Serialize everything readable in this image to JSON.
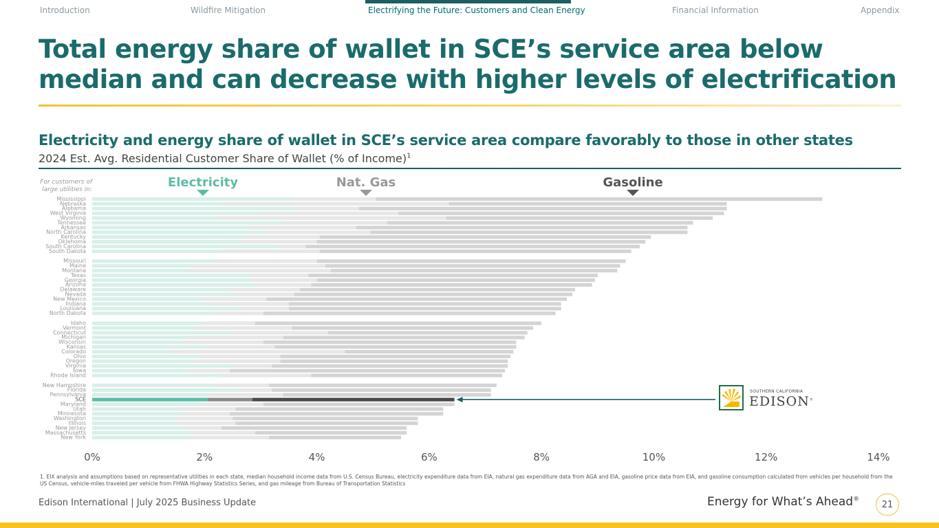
{
  "nav": {
    "items": [
      "Introduction",
      "Wildfire Mitigation",
      "Electrifying the Future: Customers and Clean Energy",
      "Financial Information",
      "Appendix"
    ],
    "active_index": 2
  },
  "title": "Total energy share of wallet in SCE’s service area below median and can decrease with higher levels of electrification",
  "subtitle": "Electricity and energy share of wallet in SCE’s service area compare favorably to those in other states",
  "subtitle2": "2024 Est. Avg. Residential Customer Share of Wallet (% of Income)",
  "subtitle2_footnote_mark": "1",
  "chart_data": {
    "type": "bar",
    "orientation": "horizontal",
    "stacked": true,
    "row_header": "For customers of large utilities in:",
    "series": [
      {
        "name": "Electricity",
        "color": "#d9efe9",
        "highlight_color": "#5cbda6"
      },
      {
        "name": "Nat. Gas",
        "color": "#e7e7e7",
        "highlight_color": "#8a8a8a"
      },
      {
        "name": "Gasoline",
        "color": "#d4d4d4",
        "highlight_color": "#4a4a4a"
      }
    ],
    "highlight": "SCE",
    "xlim": [
      0,
      14
    ],
    "x_ticks": [
      "0%",
      "2%",
      "4%",
      "6%",
      "8%",
      "10%",
      "12%",
      "14%"
    ],
    "groups": [
      [
        {
          "state": "Mississippi",
          "values": [
            3.6,
            1.45,
            7.95
          ]
        },
        {
          "state": "Nebraska",
          "values": [
            2.3,
            4.05,
            4.95
          ]
        },
        {
          "state": "Alabama",
          "values": [
            3.6,
            1.15,
            6.55
          ]
        },
        {
          "state": "West Virginia",
          "values": [
            3.0,
            2.45,
            5.8
          ]
        },
        {
          "state": "Wyoming",
          "values": [
            2.2,
            4.1,
            4.75
          ]
        },
        {
          "state": "Tennessee",
          "values": [
            3.4,
            1.85,
            5.45
          ]
        },
        {
          "state": "Arkansas",
          "values": [
            2.8,
            1.9,
            5.9
          ]
        },
        {
          "state": "North Carolina",
          "values": [
            3.1,
            1.85,
            5.65
          ]
        },
        {
          "state": "Kentucky",
          "values": [
            2.7,
            1.35,
            5.9
          ]
        },
        {
          "state": "Oklahoma",
          "values": [
            2.6,
            1.4,
            5.85
          ]
        },
        {
          "state": "South Carolina",
          "values": [
            3.3,
            0.5,
            5.95
          ]
        },
        {
          "state": "South Dakota",
          "values": [
            2.3,
            1.75,
            5.55
          ]
        }
      ],
      [
        {
          "state": "Missouri",
          "values": [
            2.2,
            1.8,
            5.5
          ]
        },
        {
          "state": "Maine",
          "values": [
            1.8,
            2.35,
            5.25
          ]
        },
        {
          "state": "Montana",
          "values": [
            1.7,
            2.55,
            5.1
          ]
        },
        {
          "state": "Texas",
          "values": [
            2.8,
            1.05,
            5.15
          ]
        },
        {
          "state": "Georgia",
          "values": [
            2.8,
            1.2,
            4.95
          ]
        },
        {
          "state": "Arizona",
          "values": [
            2.9,
            1.0,
            5.0
          ]
        },
        {
          "state": "Delaware",
          "values": [
            2.4,
            1.3,
            4.9
          ]
        },
        {
          "state": "Nevada",
          "values": [
            2.5,
            1.1,
            4.95
          ]
        },
        {
          "state": "New Mexico",
          "values": [
            1.9,
            1.2,
            5.35
          ]
        },
        {
          "state": "Indiana",
          "values": [
            2.1,
            1.4,
            4.85
          ]
        },
        {
          "state": "Louisiana",
          "values": [
            2.6,
            0.9,
            4.85
          ]
        },
        {
          "state": "North Dakota",
          "values": [
            2.2,
            0.85,
            5.2
          ]
        }
      ],
      [
        {
          "state": "Idaho",
          "values": [
            2.0,
            0.9,
            5.1
          ]
        },
        {
          "state": "Vermont",
          "values": [
            1.8,
            1.75,
            4.3
          ]
        },
        {
          "state": "Connecticut",
          "values": [
            2.5,
            1.7,
            3.55
          ]
        },
        {
          "state": "Michigan",
          "values": [
            1.7,
            1.7,
            4.3
          ]
        },
        {
          "state": "Wisconsin",
          "values": [
            1.6,
            1.45,
            4.5
          ]
        },
        {
          "state": "Kansas",
          "values": [
            2.0,
            1.25,
            4.3
          ]
        },
        {
          "state": "Colorado",
          "values": [
            1.3,
            3.2,
            3.0
          ]
        },
        {
          "state": "Ohio",
          "values": [
            1.9,
            1.45,
            4.1
          ]
        },
        {
          "state": "Oregon",
          "values": [
            1.8,
            1.55,
            4.05
          ]
        },
        {
          "state": "Virginia",
          "values": [
            2.5,
            0.7,
            4.2
          ]
        },
        {
          "state": "Iowa",
          "values": [
            1.7,
            0.75,
            4.9
          ]
        },
        {
          "state": "Rhode Island",
          "values": [
            2.3,
            1.6,
            3.4
          ]
        }
      ],
      [
        {
          "state": "New Hampshire",
          "values": [
            2.2,
            0.95,
            4.05
          ]
        },
        {
          "state": "Florida",
          "values": [
            2.6,
            0.6,
            3.9
          ]
        },
        {
          "state": "Pennsylvania",
          "values": [
            2.1,
            1.3,
            3.7
          ]
        },
        {
          "state": "SCE",
          "values": [
            2.05,
            0.8,
            3.6
          ]
        },
        {
          "state": "Maryland",
          "values": [
            1.9,
            1.15,
            3.4
          ]
        },
        {
          "state": "Utah",
          "values": [
            1.5,
            1.05,
            3.7
          ]
        },
        {
          "state": "Minnesota",
          "values": [
            1.6,
            0.85,
            3.8
          ]
        },
        {
          "state": "Washington",
          "values": [
            1.5,
            1.0,
            3.3
          ]
        },
        {
          "state": "Illinois",
          "values": [
            1.5,
            1.05,
            3.25
          ]
        },
        {
          "state": "New Jersey",
          "values": [
            1.7,
            0.6,
            3.3
          ]
        },
        {
          "state": "Massachusetts",
          "values": [
            1.8,
            1.1,
            2.7
          ]
        },
        {
          "state": "New York",
          "values": [
            1.7,
            1.45,
            2.35
          ]
        }
      ]
    ]
  },
  "footnote": "1.  EIX analysis and assumptions based on representative utilities in each state, median household income data from U.S. Census Bureau, electricity expenditure data from EIA, natural gas expenditure data from AGA and EIA, gasoline price data from EIA, and gasoline consumption calculated from vehicles per household from the US Census, vehicle-miles traveled per vehicle from FHWA Highway Statistics Series, and gas mileage from Bureau of Transportation Statistics",
  "footer": {
    "left": "Edison International |  July 2025 Business Update",
    "tagline": "Energy for What’s Ahead",
    "tagline_mark": "®",
    "page_number": "21"
  },
  "logo": {
    "small_text": "SOUTHERN CALIFORNIA",
    "big_text": "EDISON",
    "mark": "®",
    "colors": {
      "sun": "#f5b800",
      "frame": "#1e6e4a"
    }
  }
}
